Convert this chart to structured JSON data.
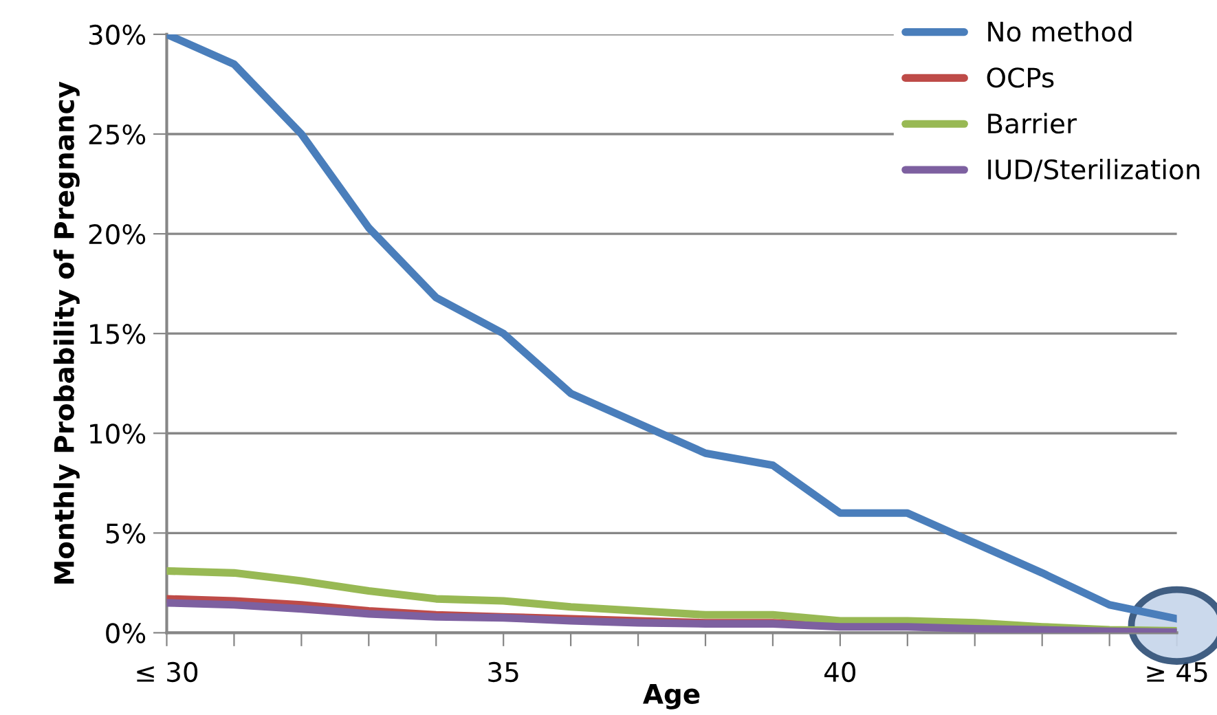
{
  "chart_data": {
    "type": "line",
    "xlabel": "Age",
    "ylabel": "Monthly Probability of Pregnancy",
    "x": [
      30,
      31,
      32,
      33,
      34,
      35,
      36,
      37,
      38,
      39,
      40,
      41,
      42,
      43,
      44,
      45
    ],
    "series": [
      {
        "name": "No method",
        "color": "#4a7ebb",
        "values": [
          30,
          28.5,
          25,
          20.3,
          16.8,
          15.0,
          12.0,
          10.5,
          9.0,
          8.4,
          6.0,
          6.0,
          4.5,
          3.0,
          1.4,
          0.7
        ]
      },
      {
        "name": "OCPs",
        "color": "#be4b48",
        "values": [
          1.7,
          1.6,
          1.4,
          1.1,
          0.9,
          0.8,
          0.7,
          0.6,
          0.5,
          0.5,
          0.35,
          0.35,
          null,
          null,
          null,
          null
        ]
      },
      {
        "name": "Barrier",
        "color": "#98b954",
        "values": [
          3.1,
          3.0,
          2.6,
          2.1,
          1.7,
          1.6,
          1.3,
          1.1,
          0.9,
          0.9,
          0.6,
          0.6,
          0.5,
          0.3,
          0.15,
          0.1
        ]
      },
      {
        "name": "IUD/Sterilization",
        "color": "#7d60a0",
        "values": [
          1.5,
          1.4,
          1.2,
          0.95,
          0.8,
          0.75,
          0.6,
          0.5,
          0.45,
          0.45,
          0.3,
          0.3,
          0.2,
          0.15,
          0.07,
          0.03
        ]
      }
    ],
    "xlim": [
      30,
      45
    ],
    "xticks": [
      {
        "value": 30,
        "label": "≤ 30"
      },
      {
        "value": 31,
        "label": null
      },
      {
        "value": 32,
        "label": null
      },
      {
        "value": 33,
        "label": null
      },
      {
        "value": 34,
        "label": null
      },
      35,
      {
        "value": 36,
        "label": null
      },
      {
        "value": 37,
        "label": null
      },
      {
        "value": 38,
        "label": null
      },
      {
        "value": 39,
        "label": null
      },
      40,
      {
        "value": 41,
        "label": null
      },
      {
        "value": 42,
        "label": null
      },
      {
        "value": 43,
        "label": null
      },
      {
        "value": 44,
        "label": null
      },
      {
        "value": 45,
        "label": "≥ 45"
      }
    ],
    "ylim": [
      0,
      30
    ],
    "yticks": [
      {
        "value": 0,
        "label": "0%"
      },
      {
        "value": 5,
        "label": "5%"
      },
      {
        "value": 10,
        "label": "10%"
      },
      {
        "value": 15,
        "label": "15%"
      },
      {
        "value": 20,
        "label": "20%"
      },
      {
        "value": 25,
        "label": "25%"
      },
      {
        "value": 30,
        "label": "30%"
      }
    ],
    "grid": "y",
    "legend": "top right",
    "marker": "none",
    "line_style": "solid"
  }
}
